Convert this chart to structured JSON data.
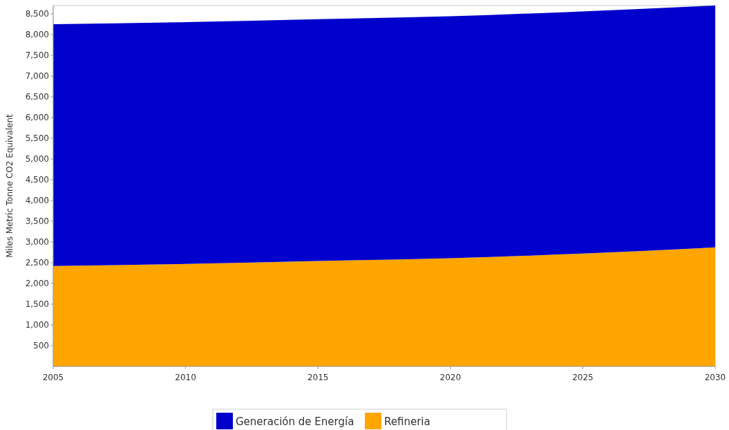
{
  "chart_data": {
    "type": "area",
    "stacked": true,
    "ylabel": "Miles Metric Tonne CO2 Equivalent",
    "x": [
      2005,
      2010,
      2015,
      2020,
      2025,
      2030
    ],
    "series": [
      {
        "name": "Refineria",
        "color": "#ffa500",
        "values": [
          2420,
          2470,
          2540,
          2610,
          2720,
          2870
        ]
      },
      {
        "name": "Generación de Energía",
        "color": "#0000cc",
        "values": [
          5830,
          5830,
          5830,
          5830,
          5840,
          5830
        ]
      }
    ],
    "xlim": [
      2005,
      2030
    ],
    "xticks": [
      2005,
      2010,
      2015,
      2020,
      2025,
      2030
    ],
    "ylim": [
      0,
      8700
    ],
    "yticks": [
      500,
      {
        "value": 1000,
        "label": "1,000"
      },
      {
        "value": 1500,
        "label": "1,500"
      },
      {
        "value": 2000,
        "label": "2,000"
      },
      {
        "value": 2500,
        "label": "2,500"
      },
      {
        "value": 3000,
        "label": "3,000"
      },
      {
        "value": 3500,
        "label": "3,500"
      },
      {
        "value": 4000,
        "label": "4,000"
      },
      {
        "value": 4500,
        "label": "4,500"
      },
      {
        "value": 5000,
        "label": "5,000"
      },
      {
        "value": 5500,
        "label": "5,500"
      },
      {
        "value": 6000,
        "label": "6,000"
      },
      {
        "value": 6500,
        "label": "6,500"
      },
      {
        "value": 7000,
        "label": "7,000"
      },
      {
        "value": 7500,
        "label": "7,500"
      },
      {
        "value": 8000,
        "label": "8,000"
      },
      {
        "value": 8500,
        "label": "8,500"
      }
    ],
    "legend": "bottom"
  }
}
